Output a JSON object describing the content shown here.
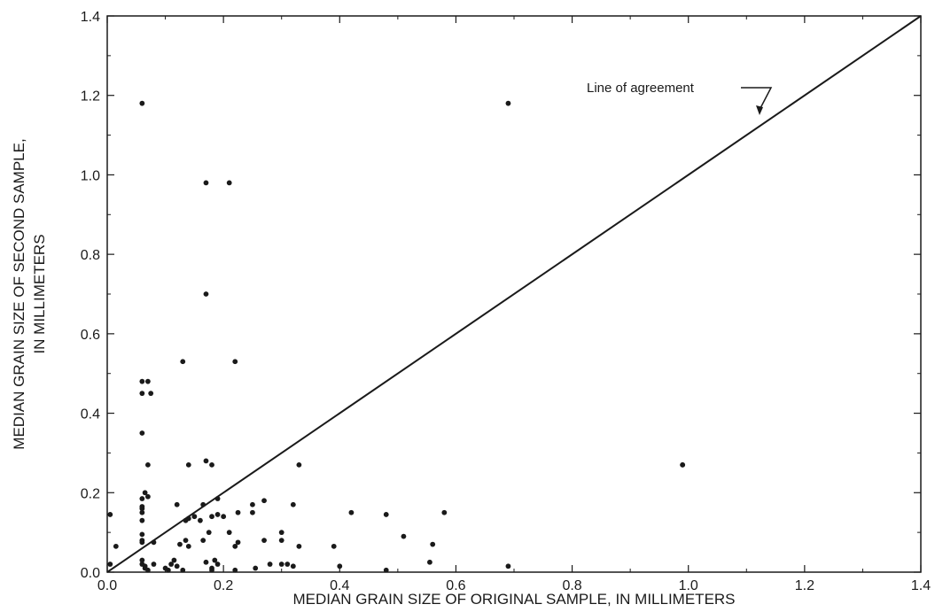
{
  "chart_data": {
    "type": "scatter",
    "title": "",
    "xlabel": "MEDIAN GRAIN SIZE OF ORIGINAL SAMPLE, IN MILLIMETERS",
    "ylabel_lines": [
      "MEDIAN GRAIN SIZE OF SECOND SAMPLE,",
      "IN MILLIMETERS"
    ],
    "xlim": [
      0.0,
      1.4
    ],
    "ylim": [
      0.0,
      1.4
    ],
    "xticks": [
      "0.0",
      "0.2",
      "0.4",
      "0.6",
      "0.8",
      "1.0",
      "1.2",
      "1.4"
    ],
    "yticks": [
      "0.0",
      "0.2",
      "0.4",
      "0.6",
      "0.8",
      "1.0",
      "1.2",
      "1.4"
    ],
    "grid": false,
    "reference_line": {
      "label": "Line of agreement",
      "x": [
        0.0,
        1.4
      ],
      "y": [
        0.0,
        1.4
      ]
    },
    "points": [
      [
        0.06,
        1.18
      ],
      [
        0.69,
        1.18
      ],
      [
        0.17,
        0.98
      ],
      [
        0.21,
        0.98
      ],
      [
        0.17,
        0.7
      ],
      [
        0.13,
        0.53
      ],
      [
        0.22,
        0.53
      ],
      [
        0.06,
        0.48
      ],
      [
        0.07,
        0.48
      ],
      [
        0.06,
        0.45
      ],
      [
        0.075,
        0.45
      ],
      [
        0.06,
        0.35
      ],
      [
        0.07,
        0.27
      ],
      [
        0.14,
        0.27
      ],
      [
        0.17,
        0.28
      ],
      [
        0.18,
        0.27
      ],
      [
        0.33,
        0.27
      ],
      [
        0.99,
        0.27
      ],
      [
        0.99,
        0.27
      ],
      [
        0.065,
        0.2
      ],
      [
        0.07,
        0.19
      ],
      [
        0.06,
        0.185
      ],
      [
        0.06,
        0.165
      ],
      [
        0.06,
        0.16
      ],
      [
        0.06,
        0.15
      ],
      [
        0.06,
        0.13
      ],
      [
        0.06,
        0.095
      ],
      [
        0.06,
        0.08
      ],
      [
        0.06,
        0.075
      ],
      [
        0.06,
        0.03
      ],
      [
        0.06,
        0.02
      ],
      [
        0.065,
        0.015
      ],
      [
        0.065,
        0.01
      ],
      [
        0.07,
        0.005
      ],
      [
        0.005,
        0.145
      ],
      [
        0.005,
        0.02
      ],
      [
        0.015,
        0.065
      ],
      [
        0.08,
        0.075
      ],
      [
        0.08,
        0.02
      ],
      [
        0.1,
        0.01
      ],
      [
        0.105,
        0.005
      ],
      [
        0.11,
        0.02
      ],
      [
        0.115,
        0.03
      ],
      [
        0.12,
        0.015
      ],
      [
        0.12,
        0.17
      ],
      [
        0.125,
        0.07
      ],
      [
        0.13,
        0.005
      ],
      [
        0.135,
        0.13
      ],
      [
        0.135,
        0.08
      ],
      [
        0.14,
        0.135
      ],
      [
        0.14,
        0.065
      ],
      [
        0.15,
        0.14
      ],
      [
        0.16,
        0.13
      ],
      [
        0.165,
        0.17
      ],
      [
        0.165,
        0.08
      ],
      [
        0.17,
        0.025
      ],
      [
        0.175,
        0.1
      ],
      [
        0.18,
        0.14
      ],
      [
        0.18,
        0.01
      ],
      [
        0.18,
        0.005
      ],
      [
        0.185,
        0.03
      ],
      [
        0.19,
        0.185
      ],
      [
        0.19,
        0.145
      ],
      [
        0.19,
        0.02
      ],
      [
        0.2,
        0.14
      ],
      [
        0.21,
        0.1
      ],
      [
        0.22,
        0.065
      ],
      [
        0.225,
        0.075
      ],
      [
        0.225,
        0.15
      ],
      [
        0.22,
        0.005
      ],
      [
        0.25,
        0.17
      ],
      [
        0.25,
        0.15
      ],
      [
        0.255,
        0.01
      ],
      [
        0.27,
        0.18
      ],
      [
        0.27,
        0.08
      ],
      [
        0.28,
        0.02
      ],
      [
        0.3,
        0.1
      ],
      [
        0.3,
        0.08
      ],
      [
        0.3,
        0.02
      ],
      [
        0.31,
        0.02
      ],
      [
        0.32,
        0.17
      ],
      [
        0.32,
        0.015
      ],
      [
        0.33,
        0.065
      ],
      [
        0.39,
        0.065
      ],
      [
        0.4,
        0.015
      ],
      [
        0.42,
        0.15
      ],
      [
        0.48,
        0.145
      ],
      [
        0.48,
        0.005
      ],
      [
        0.51,
        0.09
      ],
      [
        0.555,
        0.025
      ],
      [
        0.56,
        0.07
      ],
      [
        0.58,
        0.15
      ],
      [
        0.69,
        0.015
      ]
    ]
  }
}
